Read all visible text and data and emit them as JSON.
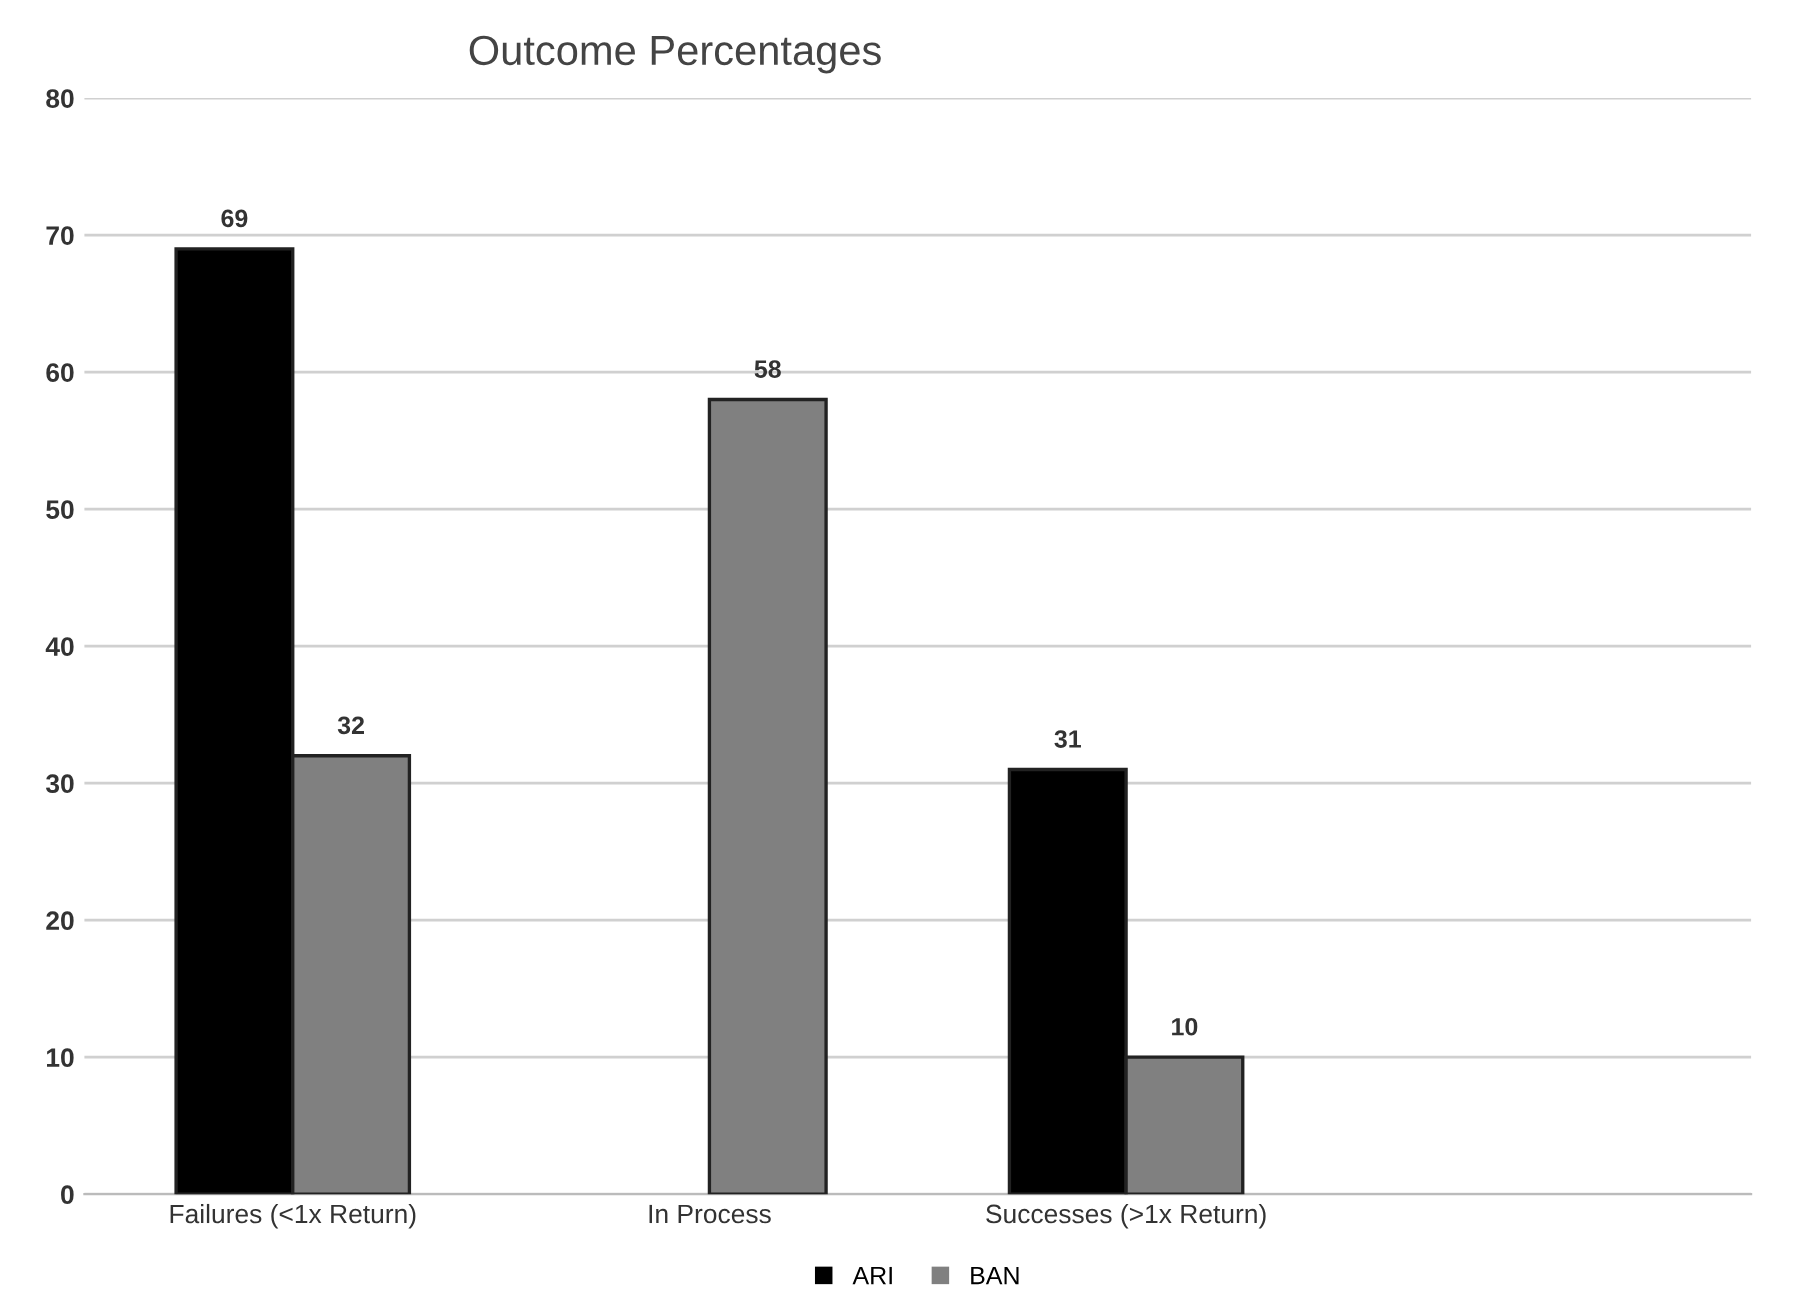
{
  "chart_data": {
    "type": "bar",
    "title": "Outcome Percentages",
    "categories": [
      "Failures (<1x Return)",
      "In Process",
      "Successes (>1x Return)",
      null
    ],
    "series": [
      {
        "name": "ARI",
        "color": "#000000",
        "values": [
          69,
          null,
          31,
          null
        ]
      },
      {
        "name": "BAN",
        "color": "#808080",
        "values": [
          32,
          58,
          10,
          null
        ]
      }
    ],
    "ylim": [
      0,
      80
    ],
    "yticks": [
      0,
      10,
      20,
      30,
      40,
      50,
      60,
      70,
      80
    ],
    "grid": "y",
    "legend": "bottom",
    "data_labels": true
  }
}
